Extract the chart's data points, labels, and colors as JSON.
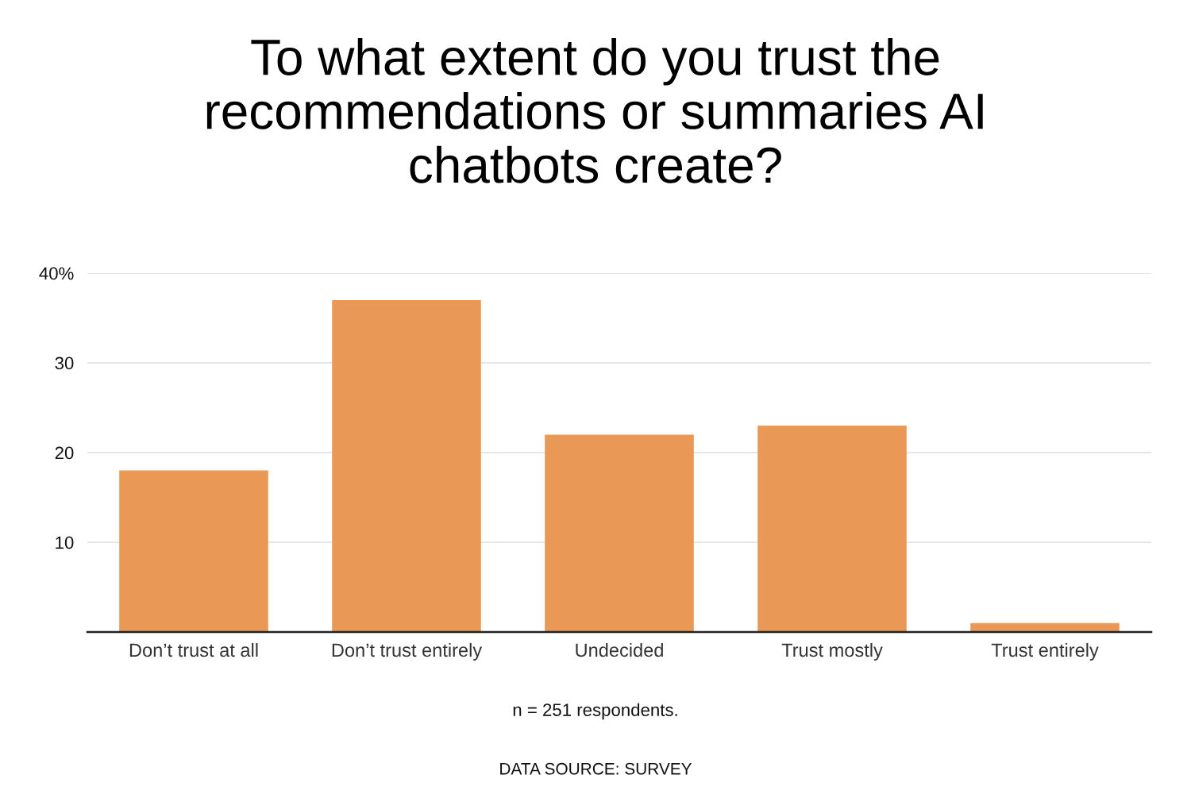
{
  "chart_data": {
    "type": "bar",
    "title": "To what extent do you trust the recommendations or summaries AI chatbots create?",
    "categories": [
      "Don’t trust at all",
      "Don’t trust entirely",
      "Undecided",
      "Trust mostly",
      "Trust entirely"
    ],
    "values": [
      18,
      37,
      22,
      23,
      1
    ],
    "color": "#e99855",
    "ylim": [
      0,
      40
    ],
    "yticks": [
      10,
      20,
      30,
      {
        "value": 40,
        "label": "40%"
      }
    ],
    "grid": "y",
    "annotations": [
      "n = 251 respondents.",
      "DATA SOURCE: SURVEY"
    ]
  }
}
